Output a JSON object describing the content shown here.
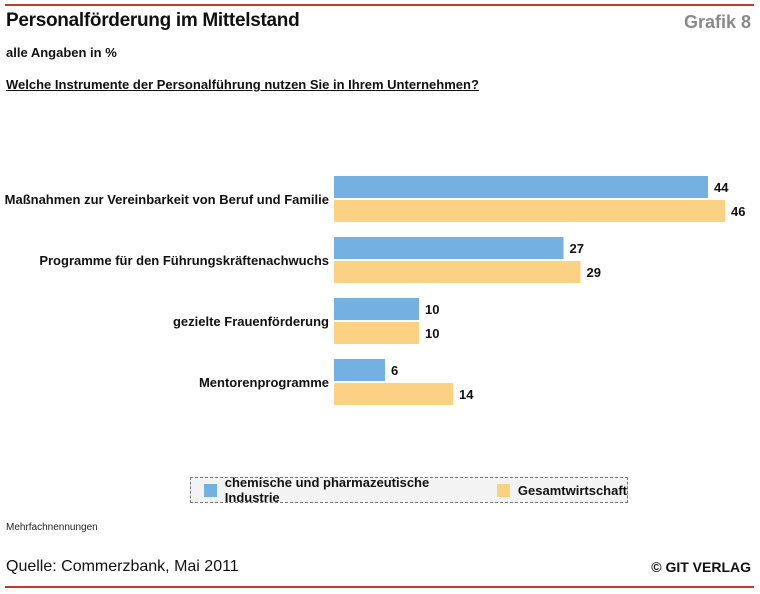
{
  "header": {
    "title": "Personalförderung im Mittelstand",
    "grafik_label": "Grafik 8",
    "subtitle": "alle Angaben in %",
    "question": "Welche Instrumente der Personalführung nutzen Sie in Ihrem Unternehmen?"
  },
  "chart_data": {
    "type": "bar",
    "orientation": "horizontal",
    "title": "Personalförderung im Mittelstand",
    "xlabel": "",
    "ylabel": "",
    "xlim": [
      0,
      50
    ],
    "grid": false,
    "categories": [
      "Maßnahmen zur Vereinbarkeit von Beruf und Familie",
      "Programme für den Führungskräftenachwuchs",
      "gezielte Frauenförderung",
      "Mentorenprogramme"
    ],
    "series": [
      {
        "name": "chemische und pharmazeutische Industrie",
        "color": "#74b0e1",
        "values": [
          44,
          27,
          10,
          6
        ]
      },
      {
        "name": "Gesamtwirtschaft",
        "color": "#fbd183",
        "values": [
          46,
          29,
          10,
          14
        ]
      }
    ],
    "legend_position": "bottom"
  },
  "footer": {
    "note": "Mehrfachnennungen",
    "source": "Quelle: Commerzbank, Mai 2011",
    "copyright": "© GIT VERLAG"
  }
}
